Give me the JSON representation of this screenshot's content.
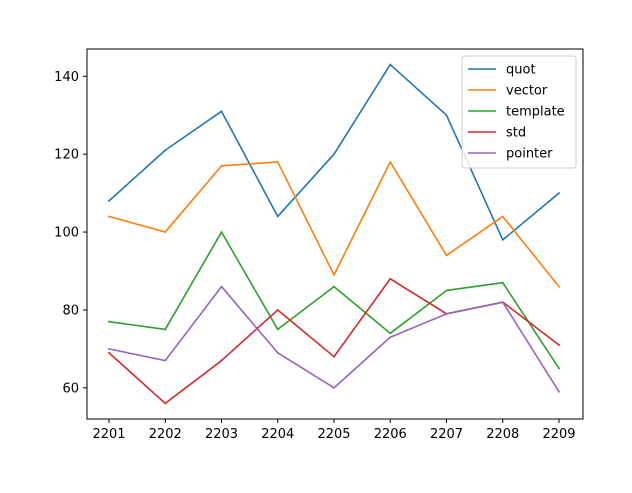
{
  "chart_data": {
    "type": "line",
    "categories": [
      "2201",
      "2202",
      "2203",
      "2204",
      "2205",
      "2206",
      "2207",
      "2208",
      "2209"
    ],
    "series": [
      {
        "name": "quot",
        "color": "#1f77b4",
        "values": [
          108,
          121,
          131,
          104,
          120,
          143,
          130,
          98,
          110
        ]
      },
      {
        "name": "vector",
        "color": "#ff7f0e",
        "values": [
          104,
          100,
          117,
          118,
          89,
          118,
          94,
          104,
          86
        ]
      },
      {
        "name": "template",
        "color": "#2ca02c",
        "values": [
          77,
          75,
          100,
          75,
          86,
          74,
          85,
          87,
          65
        ]
      },
      {
        "name": "std",
        "color": "#d62728",
        "values": [
          69,
          56,
          67,
          80,
          68,
          88,
          79,
          82,
          71
        ]
      },
      {
        "name": "pointer",
        "color": "#9467bd",
        "values": [
          70,
          67,
          86,
          69,
          60,
          73,
          79,
          82,
          59
        ]
      }
    ],
    "yticks": [
      60,
      80,
      100,
      120,
      140
    ],
    "ylim": [
      52,
      147
    ],
    "title": "",
    "xlabel": "",
    "ylabel": "",
    "grid": false,
    "legend": "top-right"
  }
}
